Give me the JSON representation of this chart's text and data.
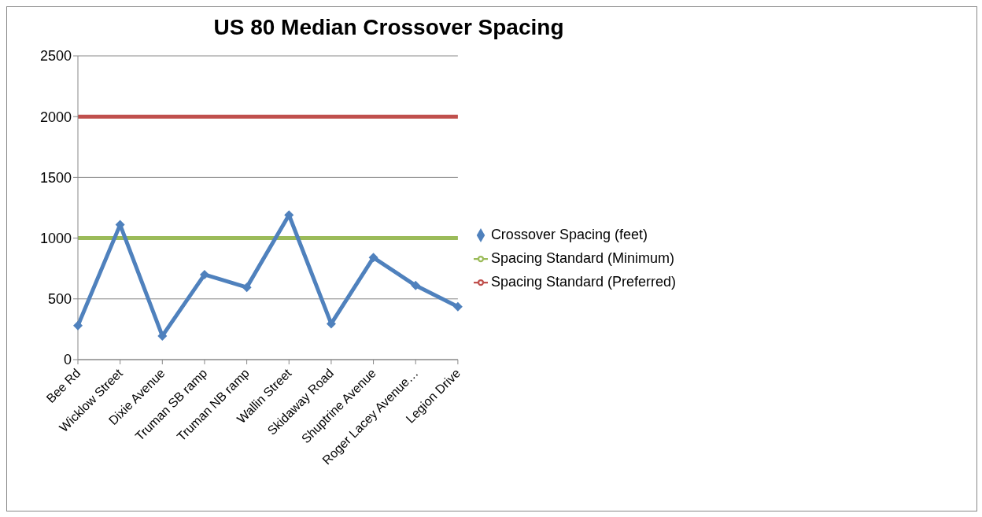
{
  "chart_data": {
    "type": "line",
    "title": "US 80 Median Crossover Spacing",
    "categories": [
      "Bee Rd",
      "Wicklow Street",
      "Dixie Avenue",
      "Truman SB ramp",
      "Truman NB ramp",
      "Wallin Street",
      "Skidaway Road",
      "Shuptrine Avenue",
      "Roger Lacey Avenue…",
      "Legion Drive"
    ],
    "series": [
      {
        "name": "Spacing Standard  (Minimum)",
        "color": "#9bbb59",
        "marker": "none",
        "values": [
          1000,
          1000,
          1000,
          1000,
          1000,
          1000,
          1000,
          1000,
          1000,
          1000
        ]
      },
      {
        "name": "Spacing Standard  (Preferred)",
        "color": "#c0504d",
        "marker": "none",
        "values": [
          2000,
          2000,
          2000,
          2000,
          2000,
          2000,
          2000,
          2000,
          2000,
          2000
        ]
      },
      {
        "name": "Crossover Spacing (feet)",
        "color": "#4f81bd",
        "marker": "diamond",
        "values": [
          280,
          1110,
          195,
          700,
          595,
          1190,
          295,
          840,
          610,
          435
        ]
      }
    ],
    "ylim": [
      0,
      2500
    ],
    "yticks": [
      0,
      500,
      1000,
      1500,
      2000,
      2500
    ],
    "grid": "y",
    "legend": "right",
    "line_style": "solid"
  }
}
